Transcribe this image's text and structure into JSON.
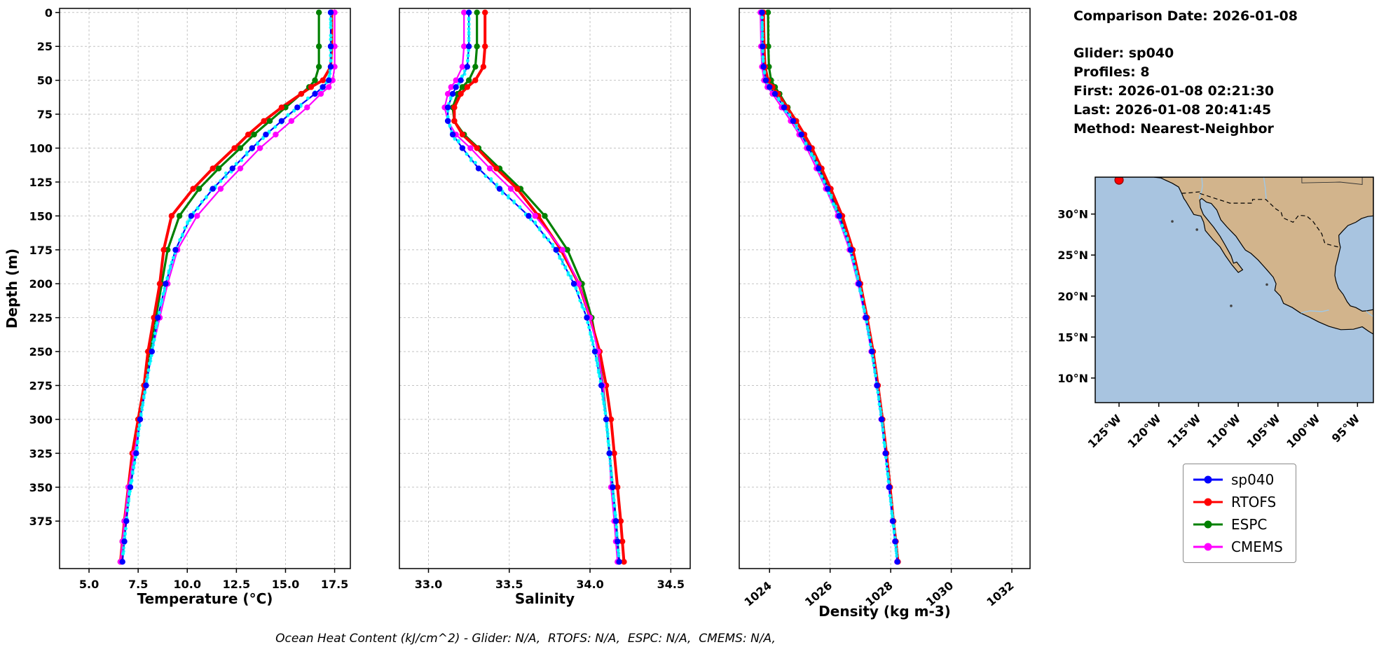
{
  "info": {
    "comparison_date": "Comparison Date: 2026-01-08",
    "glider": "Glider: sp040",
    "profiles": "Profiles: 8",
    "first": "First: 2026-01-08 02:21:30",
    "last": "Last: 2026-01-08 20:41:45",
    "method": "Method: Nearest-Neighbor"
  },
  "caption": "Ocean Heat Content (kJ/cm^2) - Glider: N/A,  RTOFS: N/A,  ESPC: N/A,  CMEMS: N/A,",
  "legend": [
    {
      "label": "sp040",
      "color": "#0000ff"
    },
    {
      "label": "RTOFS",
      "color": "#ff0000"
    },
    {
      "label": "ESPC",
      "color": "#008000"
    },
    {
      "label": "CMEMS",
      "color": "#ff00ff"
    }
  ],
  "glider_scatter": {
    "label": "glider raw profile points",
    "color": "#00ffff"
  },
  "axes": {
    "ylabel": "Depth (m)",
    "ylim": [
      -3,
      410
    ],
    "depth_ticks": [
      0,
      25,
      50,
      75,
      100,
      125,
      150,
      175,
      200,
      225,
      250,
      275,
      300,
      325,
      350,
      375
    ],
    "depths": [
      0,
      25,
      40,
      50,
      55,
      60,
      70,
      80,
      90,
      100,
      115,
      130,
      150,
      175,
      200,
      225,
      250,
      275,
      300,
      325,
      350,
      375,
      390,
      405
    ]
  },
  "chart_data": [
    {
      "id": "temperature",
      "type": "line",
      "xlabel": "Temperature (°C)",
      "xlim": [
        3.5,
        18.3
      ],
      "xticks": [
        5.0,
        7.5,
        10.0,
        12.5,
        15.0,
        17.5
      ],
      "xtick_labels": [
        "5.0",
        "7.5",
        "10.0",
        "12.5",
        "15.0",
        "17.5"
      ],
      "rotate_xticks": false,
      "series": [
        {
          "name": "sp040",
          "color": "#0000ff",
          "lw": 2.2,
          "values": [
            17.3,
            17.3,
            17.3,
            17.2,
            16.9,
            16.5,
            15.6,
            14.8,
            14.0,
            13.3,
            12.3,
            11.3,
            10.2,
            9.4,
            8.9,
            8.5,
            8.2,
            7.9,
            7.6,
            7.4,
            7.1,
            6.9,
            6.8,
            6.7
          ]
        },
        {
          "name": "RTOFS",
          "color": "#ff0000",
          "lw": 4,
          "values": [
            17.35,
            17.35,
            17.3,
            16.9,
            16.3,
            15.8,
            14.8,
            13.9,
            13.1,
            12.4,
            11.3,
            10.3,
            9.2,
            8.8,
            8.6,
            8.3,
            8.0,
            7.8,
            7.5,
            7.2,
            7.0,
            6.8,
            6.7,
            6.6
          ]
        },
        {
          "name": "ESPC",
          "color": "#008000",
          "lw": 3.2,
          "values": [
            16.7,
            16.7,
            16.7,
            16.5,
            16.2,
            15.8,
            15.0,
            14.2,
            13.4,
            12.7,
            11.6,
            10.6,
            9.6,
            9.0,
            8.7,
            8.4,
            8.1,
            7.8,
            7.5,
            7.3,
            7.0,
            6.8,
            6.7,
            6.6
          ]
        },
        {
          "name": "CMEMS",
          "color": "#ff00ff",
          "lw": 2.2,
          "values": [
            17.5,
            17.5,
            17.5,
            17.4,
            17.2,
            16.8,
            16.1,
            15.3,
            14.5,
            13.7,
            12.7,
            11.7,
            10.5,
            9.5,
            9.0,
            8.6,
            8.2,
            7.9,
            7.6,
            7.3,
            7.0,
            6.8,
            6.7,
            6.6
          ]
        }
      ]
    },
    {
      "id": "salinity",
      "type": "line",
      "xlabel": "Salinity",
      "xlim": [
        32.82,
        34.62
      ],
      "xticks": [
        33.0,
        33.5,
        34.0,
        34.5
      ],
      "xtick_labels": [
        "33.0",
        "33.5",
        "34.0",
        "34.5"
      ],
      "rotate_xticks": false,
      "series": [
        {
          "name": "sp040",
          "color": "#0000ff",
          "lw": 2.2,
          "values": [
            33.25,
            33.25,
            33.24,
            33.2,
            33.17,
            33.15,
            33.12,
            33.12,
            33.15,
            33.21,
            33.31,
            33.44,
            33.62,
            33.79,
            33.9,
            33.98,
            34.03,
            34.07,
            34.1,
            34.12,
            34.14,
            34.16,
            34.17,
            34.18
          ]
        },
        {
          "name": "RTOFS",
          "color": "#ff0000",
          "lw": 4,
          "values": [
            33.35,
            33.35,
            33.34,
            33.29,
            33.24,
            33.2,
            33.16,
            33.16,
            33.21,
            33.3,
            33.42,
            33.55,
            33.68,
            33.82,
            33.93,
            34.0,
            34.06,
            34.1,
            34.13,
            34.15,
            34.17,
            34.19,
            34.2,
            34.21
          ]
        },
        {
          "name": "ESPC",
          "color": "#008000",
          "lw": 3.2,
          "values": [
            33.3,
            33.3,
            33.29,
            33.25,
            33.21,
            33.18,
            33.15,
            33.16,
            33.22,
            33.31,
            33.44,
            33.57,
            33.72,
            33.86,
            33.95,
            34.01,
            34.05,
            34.08,
            34.1,
            34.12,
            34.14,
            34.16,
            34.17,
            34.18
          ]
        },
        {
          "name": "CMEMS",
          "color": "#ff00ff",
          "lw": 2.2,
          "values": [
            33.22,
            33.22,
            33.21,
            33.17,
            33.14,
            33.12,
            33.1,
            33.12,
            33.17,
            33.26,
            33.38,
            33.51,
            33.66,
            33.83,
            33.93,
            34.0,
            34.05,
            34.08,
            34.1,
            34.12,
            34.13,
            34.15,
            34.16,
            34.17
          ]
        }
      ]
    },
    {
      "id": "density",
      "type": "line",
      "xlabel": "Density (kg m-3)",
      "xlim": [
        1023.0,
        1032.6
      ],
      "xticks": [
        1024,
        1026,
        1028,
        1030,
        1032
      ],
      "xtick_labels": [
        "1024",
        "1026",
        "1028",
        "1030",
        "1032"
      ],
      "rotate_xticks": true,
      "series": [
        {
          "name": "sp040",
          "color": "#0000ff",
          "lw": 2.2,
          "values": [
            1023.75,
            1023.77,
            1023.8,
            1023.88,
            1024.0,
            1024.18,
            1024.48,
            1024.78,
            1025.05,
            1025.3,
            1025.62,
            1025.92,
            1026.3,
            1026.68,
            1026.95,
            1027.18,
            1027.38,
            1027.55,
            1027.7,
            1027.83,
            1027.95,
            1028.07,
            1028.15,
            1028.22
          ]
        },
        {
          "name": "RTOFS",
          "color": "#ff0000",
          "lw": 4,
          "values": [
            1023.8,
            1023.82,
            1023.85,
            1023.95,
            1024.1,
            1024.28,
            1024.58,
            1024.88,
            1025.15,
            1025.4,
            1025.72,
            1026.02,
            1026.4,
            1026.75,
            1027.0,
            1027.22,
            1027.42,
            1027.58,
            1027.73,
            1027.86,
            1027.98,
            1028.09,
            1028.17,
            1028.24
          ]
        },
        {
          "name": "ESPC",
          "color": "#008000",
          "lw": 3.2,
          "values": [
            1023.95,
            1023.96,
            1023.98,
            1024.05,
            1024.18,
            1024.33,
            1024.6,
            1024.88,
            1025.13,
            1025.37,
            1025.68,
            1025.98,
            1026.35,
            1026.7,
            1026.96,
            1027.19,
            1027.39,
            1027.56,
            1027.71,
            1027.84,
            1027.96,
            1028.08,
            1028.16,
            1028.23
          ]
        },
        {
          "name": "CMEMS",
          "color": "#ff00ff",
          "lw": 2.2,
          "values": [
            1023.7,
            1023.72,
            1023.75,
            1023.82,
            1023.93,
            1024.1,
            1024.4,
            1024.7,
            1024.98,
            1025.23,
            1025.55,
            1025.86,
            1026.25,
            1026.64,
            1026.92,
            1027.16,
            1027.36,
            1027.54,
            1027.69,
            1027.82,
            1027.94,
            1028.06,
            1028.14,
            1028.21
          ]
        }
      ]
    }
  ],
  "map": {
    "ocean_color": "#a8c4e0",
    "land_color": "#d2b48c",
    "river_color": "#9ec8e8",
    "extent": {
      "lon": [
        -128,
        -93
      ],
      "lat": [
        7,
        34.5
      ]
    },
    "lat_ticks": [
      {
        "v": 30,
        "label": "30°N"
      },
      {
        "v": 25,
        "label": "25°N"
      },
      {
        "v": 20,
        "label": "20°N"
      },
      {
        "v": 15,
        "label": "15°N"
      },
      {
        "v": 10,
        "label": "10°N"
      }
    ],
    "lon_ticks": [
      {
        "v": -125,
        "label": "125°W"
      },
      {
        "v": -120,
        "label": "120°W"
      },
      {
        "v": -115,
        "label": "115°W"
      },
      {
        "v": -110,
        "label": "110°W"
      },
      {
        "v": -105,
        "label": "105°W"
      },
      {
        "v": -100,
        "label": "100°W"
      },
      {
        "v": -95,
        "label": "95°W"
      }
    ],
    "marker": {
      "lon": -125.0,
      "lat": 34.15,
      "color": "#ff0000",
      "edge": "#8b0000"
    },
    "land": [
      [
        -120.6,
        34.5
      ],
      [
        -119.7,
        34.4
      ],
      [
        -119.2,
        34.15
      ],
      [
        -118.3,
        33.76
      ],
      [
        -117.5,
        33.3
      ],
      [
        -117.12,
        32.53
      ],
      [
        -116.85,
        31.9
      ],
      [
        -116.6,
        31.56
      ],
      [
        -116.0,
        30.6
      ],
      [
        -115.6,
        29.95
      ],
      [
        -114.7,
        29.75
      ],
      [
        -114.35,
        29.0
      ],
      [
        -114.15,
        28.0
      ],
      [
        -113.2,
        26.9
      ],
      [
        -112.3,
        26.0
      ],
      [
        -111.6,
        24.9
      ],
      [
        -110.8,
        23.8
      ],
      [
        -110.0,
        22.88
      ],
      [
        -109.45,
        23.2
      ],
      [
        -110.2,
        24.15
      ],
      [
        -110.6,
        24.0
      ],
      [
        -110.9,
        24.9
      ],
      [
        -111.7,
        26.3
      ],
      [
        -112.3,
        27.3
      ],
      [
        -113.1,
        28.4
      ],
      [
        -113.6,
        29.0
      ],
      [
        -114.4,
        29.95
      ],
      [
        -114.75,
        30.8
      ],
      [
        -114.85,
        31.7
      ],
      [
        -114.6,
        31.9
      ],
      [
        -114.0,
        31.45
      ],
      [
        -113.4,
        31.3
      ],
      [
        -112.7,
        30.5
      ],
      [
        -112.2,
        29.3
      ],
      [
        -111.4,
        28.4
      ],
      [
        -110.9,
        27.9
      ],
      [
        -110.3,
        27.3
      ],
      [
        -109.4,
        26.0
      ],
      [
        -109.1,
        25.6
      ],
      [
        -108.4,
        25.2
      ],
      [
        -107.5,
        24.4
      ],
      [
        -106.4,
        23.2
      ],
      [
        -105.6,
        22.3
      ],
      [
        -105.25,
        21.5
      ],
      [
        -105.4,
        20.7
      ],
      [
        -104.7,
        20.0
      ],
      [
        -104.3,
        19.1
      ],
      [
        -103.2,
        18.6
      ],
      [
        -102.2,
        17.95
      ],
      [
        -101.0,
        17.4
      ],
      [
        -99.9,
        16.85
      ],
      [
        -98.6,
        16.3
      ],
      [
        -97.1,
        15.9
      ],
      [
        -95.5,
        15.95
      ],
      [
        -94.4,
        16.25
      ],
      [
        -93.6,
        15.7
      ],
      [
        -93.0,
        15.35
      ],
      [
        -93.0,
        18.35
      ],
      [
        -93.8,
        18.2
      ],
      [
        -94.4,
        18.15
      ],
      [
        -95.2,
        18.6
      ],
      [
        -95.9,
        18.8
      ],
      [
        -96.3,
        19.3
      ],
      [
        -96.8,
        20.2
      ],
      [
        -97.4,
        20.95
      ],
      [
        -97.7,
        21.8
      ],
      [
        -97.85,
        22.5
      ],
      [
        -97.75,
        23.6
      ],
      [
        -97.45,
        24.7
      ],
      [
        -97.15,
        25.95
      ],
      [
        -97.3,
        26.6
      ],
      [
        -97.35,
        27.4
      ],
      [
        -96.9,
        27.9
      ],
      [
        -96.2,
        28.6
      ],
      [
        -95.2,
        29.0
      ],
      [
        -94.5,
        29.45
      ],
      [
        -93.7,
        29.7
      ],
      [
        -93.0,
        29.78
      ],
      [
        -93.0,
        34.5
      ]
    ],
    "border": [
      [
        -117.12,
        32.53
      ],
      [
        -116.3,
        32.57
      ],
      [
        -114.72,
        32.72
      ],
      [
        -114.8,
        32.5
      ],
      [
        -111.07,
        31.33
      ],
      [
        -108.21,
        31.33
      ],
      [
        -108.21,
        31.78
      ],
      [
        -106.53,
        31.78
      ],
      [
        -105.3,
        30.65
      ],
      [
        -104.6,
        30.2
      ],
      [
        -104.4,
        29.55
      ],
      [
        -103.1,
        29.0
      ],
      [
        -102.4,
        29.85
      ],
      [
        -101.4,
        29.77
      ],
      [
        -100.6,
        29.1
      ],
      [
        -99.5,
        27.6
      ],
      [
        -99.1,
        26.4
      ],
      [
        -97.5,
        26.0
      ],
      [
        -97.15,
        25.96
      ]
    ],
    "state_line": [
      [
        -102.0,
        34.5
      ],
      [
        -102.0,
        33.8
      ],
      [
        -97.2,
        33.9
      ],
      [
        -94.4,
        33.6
      ],
      [
        -94.4,
        34.5
      ]
    ],
    "rivers": [
      [
        [
          -114.6,
          34.5
        ],
        [
          -114.5,
          33.5
        ],
        [
          -114.6,
          32.8
        ],
        [
          -114.85,
          32.2
        ],
        [
          -114.9,
          31.85
        ]
      ],
      [
        [
          -106.8,
          34.5
        ],
        [
          -106.6,
          33.2
        ],
        [
          -106.5,
          32.0
        ],
        [
          -106.53,
          31.78
        ]
      ],
      [
        [
          -102.1,
          17.95
        ],
        [
          -101.0,
          18.2
        ],
        [
          -99.5,
          18.1
        ],
        [
          -98.6,
          18.3
        ]
      ],
      [
        [
          -93.0,
          17.5
        ],
        [
          -93.6,
          17.9
        ],
        [
          -93.9,
          18.15
        ]
      ]
    ],
    "islands": [
      [
        -118.3,
        29.1
      ],
      [
        -115.2,
        28.1
      ],
      [
        -110.9,
        18.8
      ],
      [
        -106.4,
        21.4
      ]
    ]
  }
}
